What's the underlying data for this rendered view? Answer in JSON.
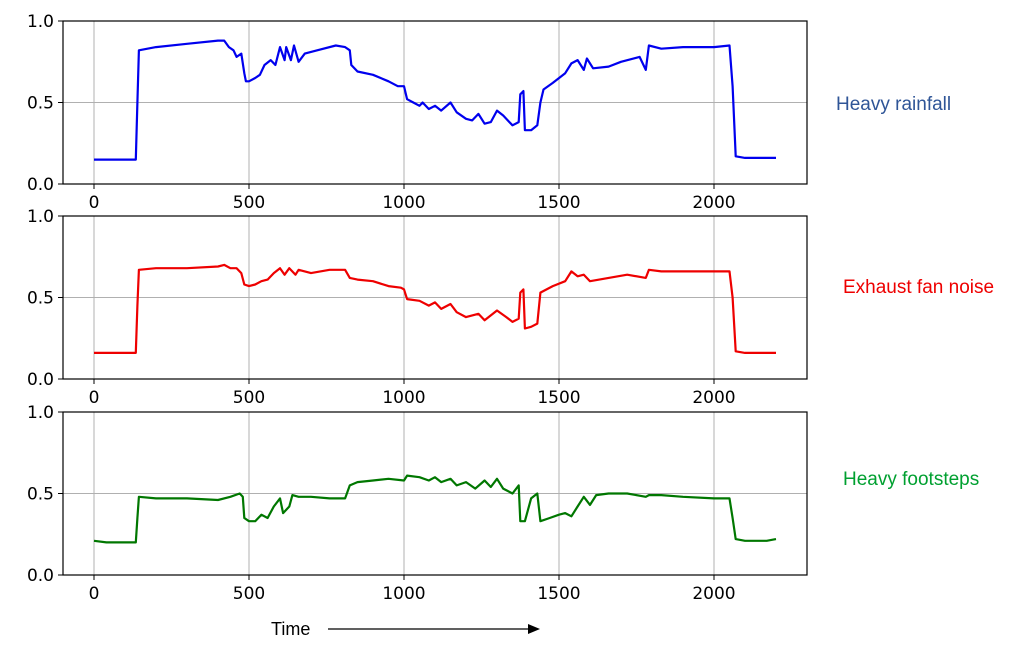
{
  "chart_data": [
    {
      "type": "line",
      "label": "Heavy rainfall",
      "color": "#0000ee",
      "label_color": "#2f5597",
      "xlim": [
        -100,
        2300
      ],
      "ylim": [
        0,
        1
      ],
      "xticks": [
        0,
        500,
        1000,
        1500,
        2000
      ],
      "yticks": [
        0.0,
        0.5,
        1.0
      ],
      "ytick_labels": [
        "0.0",
        "0.5",
        "1.0"
      ],
      "grid": true,
      "points": [
        [
          0,
          0.15
        ],
        [
          135,
          0.15
        ],
        [
          140,
          0.5
        ],
        [
          145,
          0.82
        ],
        [
          200,
          0.84
        ],
        [
          300,
          0.86
        ],
        [
          400,
          0.88
        ],
        [
          420,
          0.88
        ],
        [
          435,
          0.84
        ],
        [
          450,
          0.82
        ],
        [
          460,
          0.78
        ],
        [
          475,
          0.8
        ],
        [
          485,
          0.68
        ],
        [
          490,
          0.63
        ],
        [
          500,
          0.63
        ],
        [
          520,
          0.65
        ],
        [
          535,
          0.67
        ],
        [
          550,
          0.73
        ],
        [
          570,
          0.76
        ],
        [
          585,
          0.73
        ],
        [
          600,
          0.84
        ],
        [
          615,
          0.76
        ],
        [
          620,
          0.84
        ],
        [
          635,
          0.76
        ],
        [
          645,
          0.85
        ],
        [
          660,
          0.75
        ],
        [
          680,
          0.8
        ],
        [
          720,
          0.82
        ],
        [
          780,
          0.85
        ],
        [
          810,
          0.84
        ],
        [
          825,
          0.82
        ],
        [
          830,
          0.73
        ],
        [
          850,
          0.69
        ],
        [
          900,
          0.67
        ],
        [
          950,
          0.63
        ],
        [
          980,
          0.6
        ],
        [
          1000,
          0.6
        ],
        [
          1010,
          0.52
        ],
        [
          1030,
          0.5
        ],
        [
          1050,
          0.48
        ],
        [
          1060,
          0.5
        ],
        [
          1080,
          0.46
        ],
        [
          1100,
          0.48
        ],
        [
          1120,
          0.45
        ],
        [
          1150,
          0.5
        ],
        [
          1170,
          0.44
        ],
        [
          1200,
          0.4
        ],
        [
          1220,
          0.39
        ],
        [
          1240,
          0.43
        ],
        [
          1260,
          0.37
        ],
        [
          1280,
          0.38
        ],
        [
          1300,
          0.45
        ],
        [
          1320,
          0.42
        ],
        [
          1340,
          0.38
        ],
        [
          1350,
          0.36
        ],
        [
          1370,
          0.38
        ],
        [
          1375,
          0.55
        ],
        [
          1385,
          0.57
        ],
        [
          1390,
          0.33
        ],
        [
          1410,
          0.33
        ],
        [
          1430,
          0.36
        ],
        [
          1440,
          0.5
        ],
        [
          1450,
          0.58
        ],
        [
          1480,
          0.62
        ],
        [
          1520,
          0.68
        ],
        [
          1540,
          0.74
        ],
        [
          1560,
          0.76
        ],
        [
          1580,
          0.7
        ],
        [
          1590,
          0.77
        ],
        [
          1610,
          0.71
        ],
        [
          1660,
          0.72
        ],
        [
          1700,
          0.75
        ],
        [
          1760,
          0.78
        ],
        [
          1780,
          0.7
        ],
        [
          1790,
          0.85
        ],
        [
          1830,
          0.83
        ],
        [
          1900,
          0.84
        ],
        [
          2000,
          0.84
        ],
        [
          2050,
          0.85
        ],
        [
          2060,
          0.6
        ],
        [
          2070,
          0.17
        ],
        [
          2100,
          0.16
        ],
        [
          2200,
          0.16
        ]
      ]
    },
    {
      "type": "line",
      "label": "Exhaust fan noise",
      "color": "#ee0000",
      "label_color": "#ee0000",
      "xlim": [
        -100,
        2300
      ],
      "ylim": [
        0,
        1
      ],
      "xticks": [
        0,
        500,
        1000,
        1500,
        2000
      ],
      "yticks": [
        0.0,
        0.5,
        1.0
      ],
      "ytick_labels": [
        "0.0",
        "0.5",
        "1.0"
      ],
      "grid": true,
      "points": [
        [
          0,
          0.16
        ],
        [
          135,
          0.16
        ],
        [
          140,
          0.45
        ],
        [
          145,
          0.67
        ],
        [
          200,
          0.68
        ],
        [
          300,
          0.68
        ],
        [
          400,
          0.69
        ],
        [
          420,
          0.7
        ],
        [
          440,
          0.68
        ],
        [
          460,
          0.68
        ],
        [
          475,
          0.65
        ],
        [
          485,
          0.58
        ],
        [
          500,
          0.57
        ],
        [
          520,
          0.58
        ],
        [
          540,
          0.6
        ],
        [
          560,
          0.61
        ],
        [
          580,
          0.65
        ],
        [
          600,
          0.68
        ],
        [
          615,
          0.64
        ],
        [
          630,
          0.68
        ],
        [
          650,
          0.64
        ],
        [
          660,
          0.67
        ],
        [
          700,
          0.65
        ],
        [
          760,
          0.67
        ],
        [
          810,
          0.67
        ],
        [
          825,
          0.62
        ],
        [
          850,
          0.61
        ],
        [
          900,
          0.6
        ],
        [
          950,
          0.57
        ],
        [
          990,
          0.56
        ],
        [
          1000,
          0.55
        ],
        [
          1010,
          0.49
        ],
        [
          1050,
          0.48
        ],
        [
          1080,
          0.45
        ],
        [
          1100,
          0.47
        ],
        [
          1120,
          0.43
        ],
        [
          1150,
          0.46
        ],
        [
          1170,
          0.41
        ],
        [
          1200,
          0.38
        ],
        [
          1240,
          0.4
        ],
        [
          1260,
          0.36
        ],
        [
          1300,
          0.42
        ],
        [
          1330,
          0.38
        ],
        [
          1350,
          0.35
        ],
        [
          1370,
          0.37
        ],
        [
          1375,
          0.53
        ],
        [
          1385,
          0.55
        ],
        [
          1390,
          0.31
        ],
        [
          1410,
          0.32
        ],
        [
          1430,
          0.34
        ],
        [
          1440,
          0.53
        ],
        [
          1480,
          0.57
        ],
        [
          1520,
          0.6
        ],
        [
          1540,
          0.66
        ],
        [
          1560,
          0.63
        ],
        [
          1580,
          0.64
        ],
        [
          1600,
          0.6
        ],
        [
          1660,
          0.62
        ],
        [
          1720,
          0.64
        ],
        [
          1780,
          0.62
        ],
        [
          1790,
          0.67
        ],
        [
          1830,
          0.66
        ],
        [
          1900,
          0.66
        ],
        [
          2000,
          0.66
        ],
        [
          2050,
          0.66
        ],
        [
          2060,
          0.5
        ],
        [
          2070,
          0.17
        ],
        [
          2100,
          0.16
        ],
        [
          2200,
          0.16
        ]
      ]
    },
    {
      "type": "line",
      "label": "Heavy footsteps",
      "color": "#007700",
      "label_color": "#00a030",
      "xlim": [
        -100,
        2300
      ],
      "ylim": [
        0,
        1
      ],
      "xticks": [
        0,
        500,
        1000,
        1500,
        2000
      ],
      "yticks": [
        0.0,
        0.5,
        1.0
      ],
      "ytick_labels": [
        "0.0",
        "0.5",
        "1.0"
      ],
      "grid": true,
      "points": [
        [
          0,
          0.21
        ],
        [
          40,
          0.2
        ],
        [
          135,
          0.2
        ],
        [
          140,
          0.35
        ],
        [
          145,
          0.48
        ],
        [
          200,
          0.47
        ],
        [
          300,
          0.47
        ],
        [
          400,
          0.46
        ],
        [
          440,
          0.48
        ],
        [
          470,
          0.5
        ],
        [
          480,
          0.48
        ],
        [
          485,
          0.35
        ],
        [
          500,
          0.33
        ],
        [
          520,
          0.33
        ],
        [
          540,
          0.37
        ],
        [
          560,
          0.35
        ],
        [
          580,
          0.42
        ],
        [
          600,
          0.47
        ],
        [
          610,
          0.38
        ],
        [
          630,
          0.42
        ],
        [
          640,
          0.49
        ],
        [
          660,
          0.48
        ],
        [
          700,
          0.48
        ],
        [
          760,
          0.47
        ],
        [
          810,
          0.47
        ],
        [
          825,
          0.55
        ],
        [
          850,
          0.57
        ],
        [
          900,
          0.58
        ],
        [
          950,
          0.59
        ],
        [
          1000,
          0.58
        ],
        [
          1010,
          0.61
        ],
        [
          1050,
          0.6
        ],
        [
          1080,
          0.58
        ],
        [
          1100,
          0.6
        ],
        [
          1120,
          0.57
        ],
        [
          1150,
          0.59
        ],
        [
          1170,
          0.55
        ],
        [
          1200,
          0.57
        ],
        [
          1230,
          0.53
        ],
        [
          1260,
          0.58
        ],
        [
          1280,
          0.54
        ],
        [
          1300,
          0.59
        ],
        [
          1320,
          0.53
        ],
        [
          1350,
          0.5
        ],
        [
          1370,
          0.55
        ],
        [
          1375,
          0.33
        ],
        [
          1390,
          0.33
        ],
        [
          1410,
          0.47
        ],
        [
          1430,
          0.5
        ],
        [
          1440,
          0.33
        ],
        [
          1470,
          0.35
        ],
        [
          1500,
          0.37
        ],
        [
          1520,
          0.38
        ],
        [
          1540,
          0.36
        ],
        [
          1560,
          0.42
        ],
        [
          1580,
          0.48
        ],
        [
          1600,
          0.43
        ],
        [
          1620,
          0.49
        ],
        [
          1660,
          0.5
        ],
        [
          1720,
          0.5
        ],
        [
          1780,
          0.48
        ],
        [
          1790,
          0.49
        ],
        [
          1830,
          0.49
        ],
        [
          1900,
          0.48
        ],
        [
          2000,
          0.47
        ],
        [
          2050,
          0.47
        ],
        [
          2060,
          0.35
        ],
        [
          2070,
          0.22
        ],
        [
          2100,
          0.21
        ],
        [
          2170,
          0.21
        ],
        [
          2200,
          0.22
        ]
      ]
    }
  ],
  "xaxis_title": "Time"
}
